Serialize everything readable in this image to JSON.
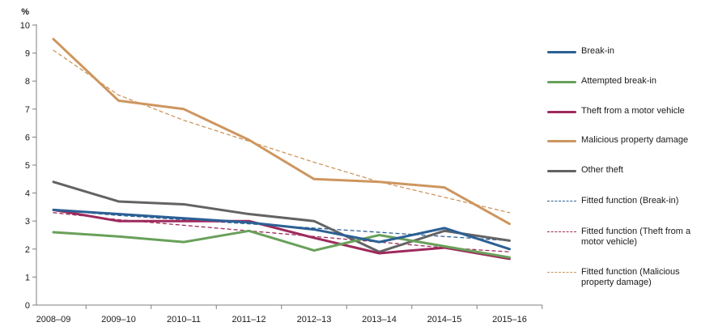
{
  "chart_data": {
    "type": "line",
    "title": "",
    "y_axis_label": "%",
    "ylim": [
      0,
      10
    ],
    "ytick_step": 1,
    "grid": false,
    "legend_position": "right",
    "categories": [
      "2008–09",
      "2009–10",
      "2010–11",
      "2011–12",
      "2012–13",
      "2013–14",
      "2014–15",
      "2015–16"
    ],
    "series": [
      {
        "name": "Break-in",
        "style": "solid",
        "color": "#2c6095",
        "values": [
          3.4,
          3.25,
          3.1,
          2.95,
          2.7,
          2.25,
          2.75,
          2.0
        ]
      },
      {
        "name": "Attempted break-in",
        "style": "solid",
        "color": "#69a05a",
        "values": [
          2.6,
          2.45,
          2.25,
          2.65,
          1.95,
          2.5,
          2.1,
          1.7
        ]
      },
      {
        "name": "Theft from a motor vehicle",
        "style": "solid",
        "color": "#9e2a5c",
        "values": [
          3.4,
          3.0,
          3.0,
          3.0,
          2.4,
          1.85,
          2.05,
          1.65
        ]
      },
      {
        "name": "Malicious property damage",
        "style": "solid",
        "color": "#cd965f",
        "values": [
          9.5,
          7.3,
          7.0,
          5.9,
          4.5,
          4.4,
          4.2,
          2.9
        ]
      },
      {
        "name": "Other theft",
        "style": "solid",
        "color": "#636363",
        "values": [
          4.4,
          3.7,
          3.6,
          3.25,
          3.0,
          1.9,
          2.65,
          2.3
        ]
      },
      {
        "name": "Fitted function (Break-in)",
        "style": "dashed",
        "color": "#2c6095",
        "values": [
          3.4,
          3.2,
          3.05,
          2.9,
          2.75,
          2.6,
          2.45,
          2.3
        ]
      },
      {
        "name": "Fitted function (Theft from a motor vehicle)",
        "style": "dashed",
        "color": "#9e2a5c",
        "values": [
          3.3,
          3.05,
          2.85,
          2.65,
          2.45,
          2.25,
          2.05,
          1.9
        ]
      },
      {
        "name": "Fitted function (Malicious property damage)",
        "style": "dashed",
        "color": "#cd965f",
        "values": [
          9.1,
          7.5,
          6.6,
          5.85,
          5.1,
          4.4,
          3.85,
          3.3
        ]
      }
    ]
  }
}
